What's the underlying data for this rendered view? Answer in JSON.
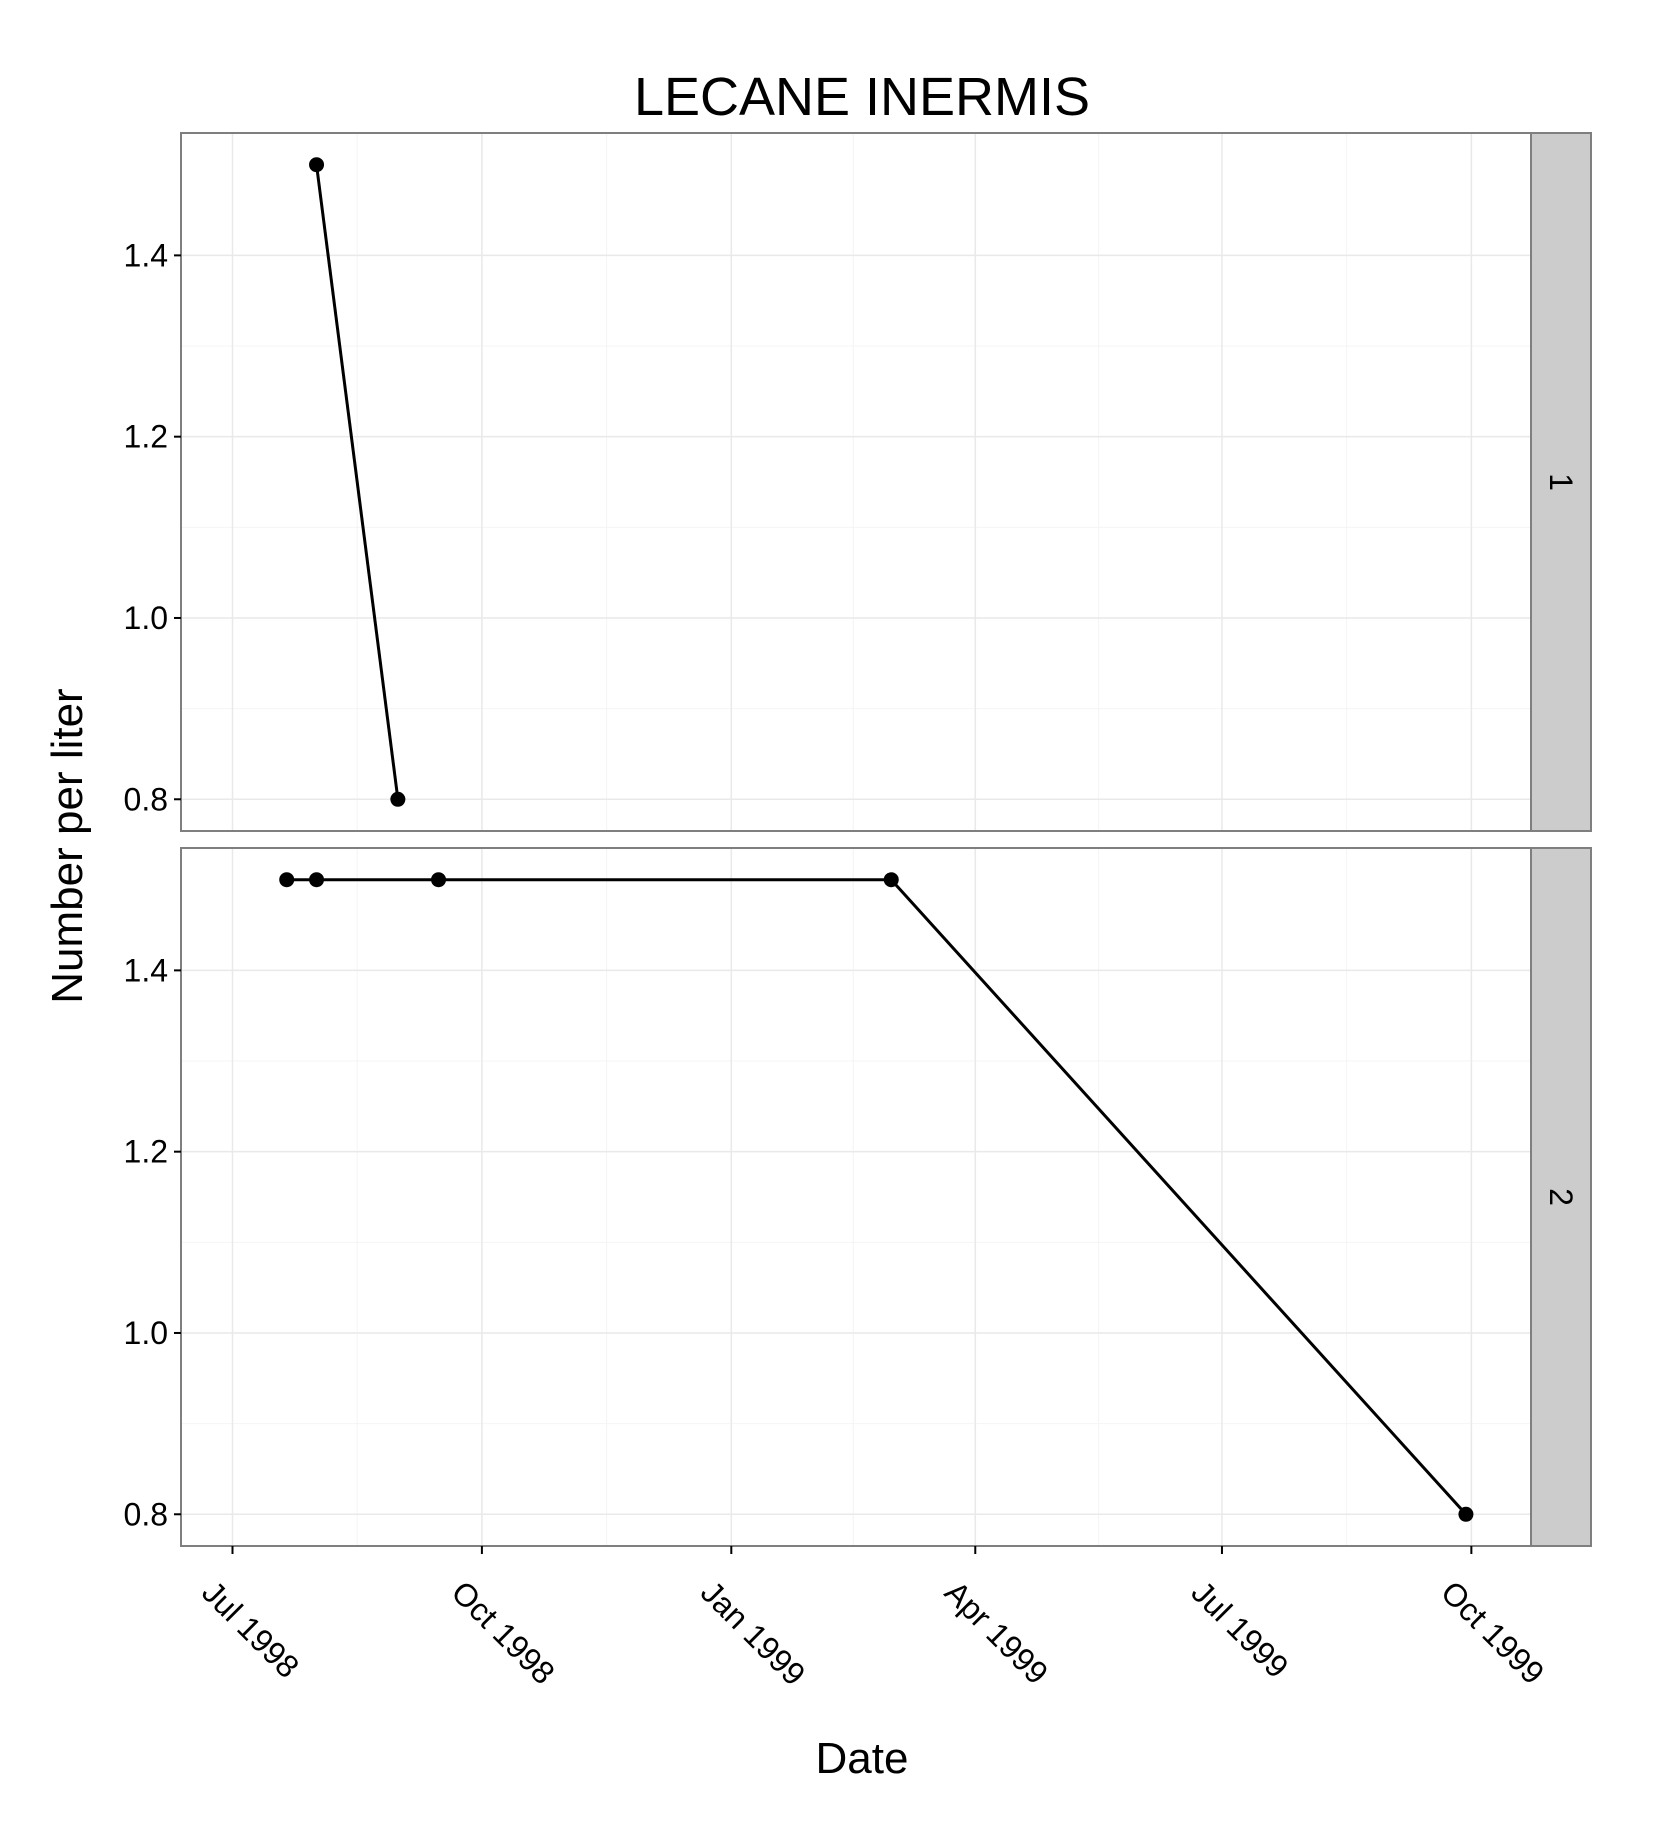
{
  "chart_data": {
    "type": "line",
    "title": "LECANE INERMIS",
    "xlabel": "Date",
    "ylabel": "Number per liter",
    "x_ticks": [
      "Jul 1998",
      "Oct 1998",
      "Jan 1999",
      "Apr 1999",
      "Jul 1999",
      "Oct 1999"
    ],
    "y_ticks": [
      "0.8",
      "1.0",
      "1.2",
      "1.4"
    ],
    "xlim": [
      "1998-06-12",
      "1999-10-23"
    ],
    "ylim": [
      0.765,
      1.535
    ],
    "grid": true,
    "marker": "circle",
    "line_color": "#000000",
    "strip_color": "#cccccc",
    "panels": [
      {
        "strip_label": "1",
        "points": [
          {
            "x": "1998-08-01",
            "y": 1.5
          },
          {
            "x": "1998-08-31",
            "y": 0.8
          }
        ]
      },
      {
        "strip_label": "2",
        "points": [
          {
            "x": "1998-07-21",
            "y": 1.5
          },
          {
            "x": "1998-08-01",
            "y": 1.5
          },
          {
            "x": "1998-09-15",
            "y": 1.5
          },
          {
            "x": "1999-03-01",
            "y": 1.5
          },
          {
            "x": "1999-09-29",
            "y": 0.8
          }
        ]
      }
    ]
  }
}
